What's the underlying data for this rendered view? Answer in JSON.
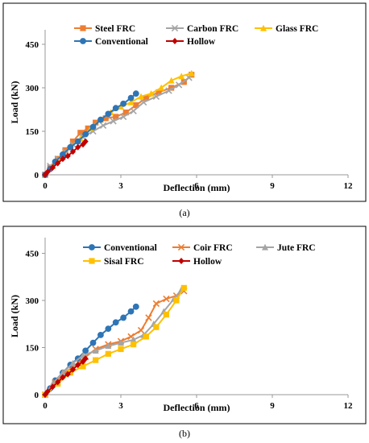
{
  "chart_data": [
    {
      "type": "line",
      "panel_label": "(a)",
      "xlabel": "Deflection (mm)",
      "ylabel": "Load (kN)",
      "xlim": [
        0,
        12
      ],
      "ylim": [
        0,
        500
      ],
      "xticks": [
        "0",
        "3",
        "6",
        "9",
        "12"
      ],
      "yticks": [
        "0",
        "150",
        "300",
        "450"
      ],
      "grid": false,
      "legend_position": "top",
      "series": [
        {
          "name": "Steel FRC",
          "color": "#ED7D31",
          "marker": "square",
          "x": [
            0,
            0.2,
            0.5,
            0.8,
            1.1,
            1.4,
            1.7,
            2.0,
            2.4,
            2.8,
            3.2,
            3.6,
            4.0,
            4.5,
            5.0,
            5.5,
            5.8
          ],
          "y": [
            0,
            25,
            55,
            85,
            115,
            145,
            160,
            180,
            195,
            200,
            215,
            240,
            265,
            285,
            300,
            320,
            345
          ]
        },
        {
          "name": "Carbon FRC",
          "color": "#A5A5A5",
          "marker": "x",
          "x": [
            0,
            0.2,
            0.5,
            0.8,
            1.1,
            1.5,
            1.9,
            2.3,
            2.7,
            3.1,
            3.5,
            3.9,
            4.4,
            4.9,
            5.3,
            5.7
          ],
          "y": [
            0,
            30,
            55,
            80,
            105,
            130,
            150,
            170,
            185,
            200,
            220,
            250,
            270,
            290,
            310,
            335
          ]
        },
        {
          "name": "Glass FRC",
          "color": "#FFC000",
          "marker": "triangle",
          "x": [
            0,
            0.3,
            0.6,
            1.0,
            1.4,
            1.8,
            2.2,
            2.6,
            3.0,
            3.4,
            3.8,
            4.2,
            4.6,
            5.0,
            5.4,
            5.8
          ],
          "y": [
            0,
            30,
            60,
            95,
            125,
            160,
            190,
            215,
            235,
            250,
            270,
            280,
            300,
            325,
            340,
            350
          ]
        },
        {
          "name": "Conventional",
          "color": "#2E75B6",
          "marker": "circle",
          "x": [
            0,
            0.2,
            0.4,
            0.7,
            1.0,
            1.3,
            1.6,
            1.9,
            2.2,
            2.5,
            2.8,
            3.1,
            3.4,
            3.6
          ],
          "y": [
            0,
            20,
            45,
            70,
            95,
            115,
            140,
            165,
            190,
            210,
            230,
            245,
            265,
            280
          ]
        },
        {
          "name": "Hollow",
          "color": "#C00000",
          "marker": "diamond",
          "x": [
            0,
            0.1,
            0.3,
            0.5,
            0.7,
            0.9,
            1.1,
            1.3,
            1.5,
            1.6
          ],
          "y": [
            0,
            10,
            25,
            40,
            55,
            65,
            80,
            95,
            105,
            115
          ]
        }
      ]
    },
    {
      "type": "line",
      "panel_label": "(b)",
      "xlabel": "Deflection (mm)",
      "ylabel": "Load (kN)",
      "xlim": [
        0,
        12
      ],
      "ylim": [
        0,
        500
      ],
      "xticks": [
        "0",
        "3",
        "6",
        "9",
        "12"
      ],
      "yticks": [
        "0",
        "150",
        "300",
        "450"
      ],
      "grid": false,
      "legend_position": "top",
      "series": [
        {
          "name": "Conventional",
          "color": "#2E75B6",
          "marker": "circle",
          "x": [
            0,
            0.2,
            0.4,
            0.7,
            1.0,
            1.3,
            1.6,
            1.9,
            2.2,
            2.5,
            2.8,
            3.1,
            3.4,
            3.6
          ],
          "y": [
            0,
            20,
            45,
            70,
            95,
            115,
            140,
            165,
            190,
            210,
            230,
            245,
            265,
            280
          ]
        },
        {
          "name": "Coir FRC",
          "color": "#ED7D31",
          "marker": "x",
          "x": [
            0,
            0.4,
            0.8,
            1.2,
            1.6,
            2.0,
            2.5,
            3.0,
            3.4,
            3.8,
            4.1,
            4.4,
            4.8,
            5.2,
            5.5
          ],
          "y": [
            0,
            40,
            70,
            95,
            120,
            145,
            160,
            170,
            185,
            205,
            245,
            290,
            305,
            315,
            330
          ]
        },
        {
          "name": "Jute FRC",
          "color": "#A5A5A5",
          "marker": "triangle",
          "x": [
            0,
            0.3,
            0.7,
            1.1,
            1.5,
            2.0,
            2.5,
            3.0,
            3.5,
            3.9,
            4.3,
            4.7,
            5.1,
            5.4
          ],
          "y": [
            0,
            35,
            70,
            100,
            125,
            140,
            155,
            165,
            175,
            190,
            225,
            265,
            305,
            335
          ]
        },
        {
          "name": "Sisal FRC",
          "color": "#FFC000",
          "marker": "square",
          "x": [
            0,
            0.5,
            1.0,
            1.5,
            2.0,
            2.5,
            3.0,
            3.5,
            4.0,
            4.4,
            4.8,
            5.2,
            5.5
          ],
          "y": [
            0,
            35,
            70,
            90,
            110,
            130,
            145,
            160,
            185,
            215,
            255,
            300,
            340
          ]
        },
        {
          "name": "Hollow",
          "color": "#C00000",
          "marker": "diamond",
          "x": [
            0,
            0.1,
            0.3,
            0.5,
            0.7,
            0.9,
            1.1,
            1.3,
            1.5,
            1.6
          ],
          "y": [
            0,
            10,
            25,
            40,
            55,
            65,
            80,
            95,
            105,
            115
          ]
        }
      ]
    }
  ]
}
